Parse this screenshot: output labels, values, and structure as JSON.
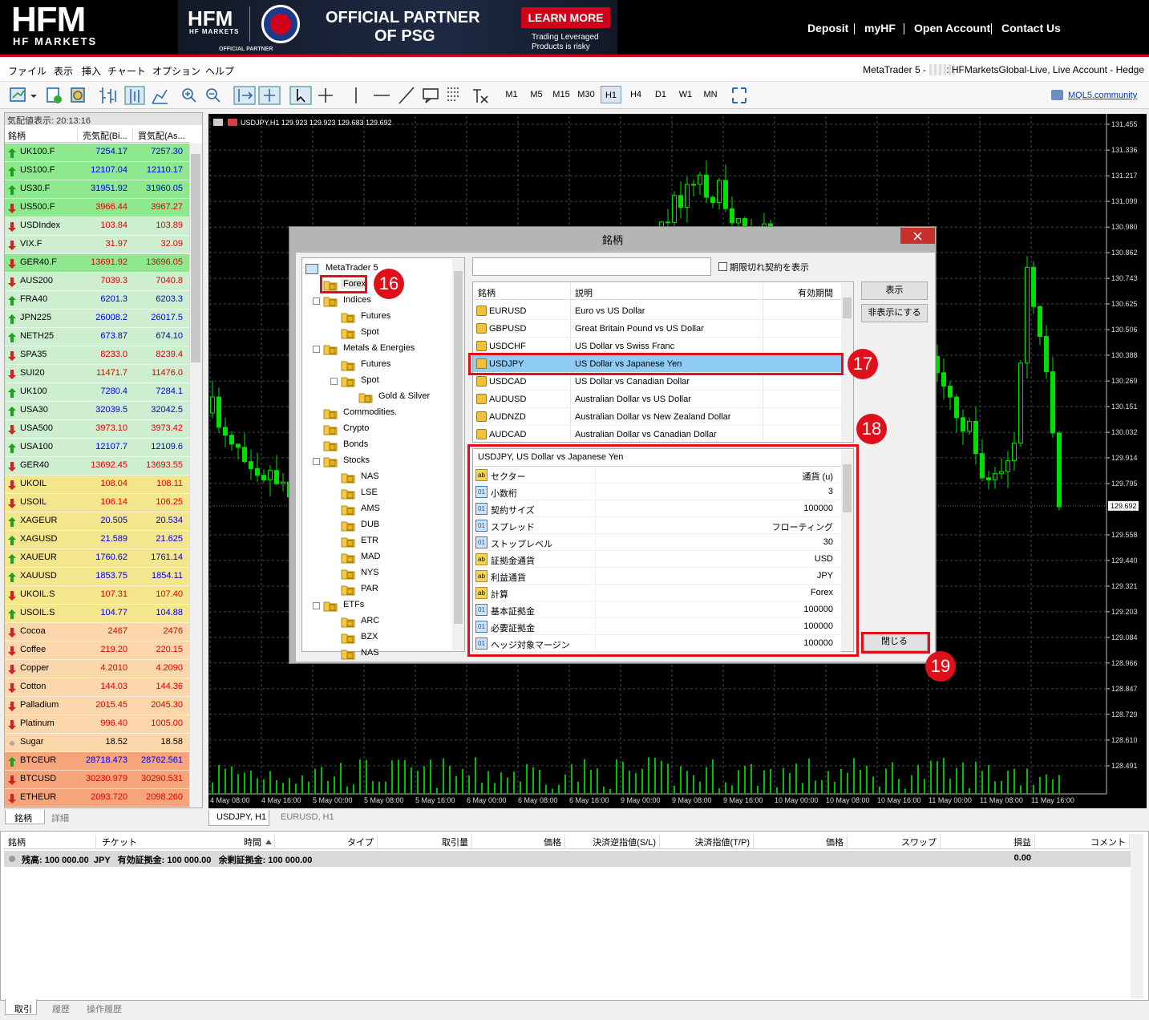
{
  "header": {
    "logo": "HFM",
    "logo_sub": "HF MARKETS",
    "banner": {
      "logo": "HFM",
      "logo_sub": "HF MARKETS",
      "partner_small": "OFFICIAL PARTNER",
      "headline": [
        "OFFICIAL PARTNER",
        "OF PSG"
      ],
      "button": "LEARN MORE",
      "risk": [
        "Trading Leveraged",
        "Products is risky"
      ]
    },
    "nav": [
      "Deposit",
      "myHF",
      "Open Account",
      "Contact Us"
    ]
  },
  "menu": {
    "items": [
      "ファイル",
      "表示",
      "挿入",
      "チャート",
      "オプション",
      "ヘルプ"
    ],
    "account_prefix": "MetaTrader 5 -",
    "account": ": HFMarketsGlobal-Live, Live Account - Hedge"
  },
  "toolbar": {
    "timeframes": [
      "M1",
      "M5",
      "M15",
      "M30",
      "H1",
      "H4",
      "D1",
      "W1",
      "MN"
    ],
    "selected": 4,
    "community": "MQL5.community"
  },
  "market_watch": {
    "title": "気配値表示: 20:13:16",
    "columns": [
      "銘柄",
      "売気配(Bi...",
      "買気配(As..."
    ],
    "rows": [
      {
        "symbol": "UK100.F",
        "bid": "7254.17",
        "ask": "7257.30",
        "dir": "up",
        "bg": "#8ee88e"
      },
      {
        "symbol": "US100.F",
        "bid": "12107.04",
        "ask": "12110.17",
        "dir": "up",
        "bg": "#8ee88e"
      },
      {
        "symbol": "US30.F",
        "bid": "31951.92",
        "ask": "31960.05",
        "dir": "up",
        "bg": "#8ee88e"
      },
      {
        "symbol": "US500.F",
        "bid": "3966.44",
        "ask": "3967.27",
        "dir": "down",
        "bg": "#8ee88e"
      },
      {
        "symbol": "USDIndex",
        "bid": "103.84",
        "ask": "103.89",
        "dir": "down",
        "bg": "#cdeecf"
      },
      {
        "symbol": "VIX.F",
        "bid": "31.97",
        "ask": "32.09",
        "dir": "down",
        "bg": "#cdeecf"
      },
      {
        "symbol": "GER40.F",
        "bid": "13691.92",
        "ask": "13696.05",
        "dir": "down",
        "bg": "#8ee88e"
      },
      {
        "symbol": "AUS200",
        "bid": "7039.3",
        "ask": "7040.8",
        "dir": "down",
        "bg": "#cdeecf"
      },
      {
        "symbol": "FRA40",
        "bid": "6201.3",
        "ask": "6203.3",
        "dir": "up",
        "bg": "#cdeecf"
      },
      {
        "symbol": "JPN225",
        "bid": "26008.2",
        "ask": "26017.5",
        "dir": "up",
        "bg": "#cdeecf"
      },
      {
        "symbol": "NETH25",
        "bid": "673.87",
        "ask": "674.10",
        "dir": "up",
        "bg": "#cdeecf"
      },
      {
        "symbol": "SPA35",
        "bid": "8233.0",
        "ask": "8239.4",
        "dir": "down",
        "bg": "#cdeecf"
      },
      {
        "symbol": "SUI20",
        "bid": "11471.7",
        "ask": "11476.0",
        "dir": "down",
        "bg": "#cdeecf"
      },
      {
        "symbol": "UK100",
        "bid": "7280.4",
        "ask": "7284.1",
        "dir": "up",
        "bg": "#cdeecf"
      },
      {
        "symbol": "USA30",
        "bid": "32039.5",
        "ask": "32042.5",
        "dir": "up",
        "bg": "#cdeecf"
      },
      {
        "symbol": "USA500",
        "bid": "3973.10",
        "ask": "3973.42",
        "dir": "down",
        "bg": "#cdeecf"
      },
      {
        "symbol": "USA100",
        "bid": "12107.7",
        "ask": "12109.6",
        "dir": "up",
        "bg": "#cdeecf"
      },
      {
        "symbol": "GER40",
        "bid": "13692.45",
        "ask": "13693.55",
        "dir": "down",
        "bg": "#cdeecf"
      },
      {
        "symbol": "UKOIL",
        "bid": "108.04",
        "ask": "108.11",
        "dir": "down",
        "bg": "#f3e68c"
      },
      {
        "symbol": "USOIL",
        "bid": "106.14",
        "ask": "106.25",
        "dir": "down",
        "bg": "#f3e68c"
      },
      {
        "symbol": "XAGEUR",
        "bid": "20.505",
        "ask": "20.534",
        "dir": "up",
        "bg": "#f3e68c"
      },
      {
        "symbol": "XAGUSD",
        "bid": "21.589",
        "ask": "21.625",
        "dir": "up",
        "bg": "#f3e68c"
      },
      {
        "symbol": "XAUEUR",
        "bid": "1760.62",
        "ask": "1761.14",
        "dir": "up",
        "bg": "#f3e68c"
      },
      {
        "symbol": "XAUUSD",
        "bid": "1853.75",
        "ask": "1854.11",
        "dir": "up",
        "bg": "#f3e68c"
      },
      {
        "symbol": "UKOIL.S",
        "bid": "107.31",
        "ask": "107.40",
        "dir": "down",
        "bg": "#f3e68c"
      },
      {
        "symbol": "USOIL.S",
        "bid": "104.77",
        "ask": "104.88",
        "dir": "up",
        "bg": "#f3e68c"
      },
      {
        "symbol": "Cocoa",
        "bid": "2467",
        "ask": "2476",
        "dir": "down",
        "bg": "#fbd7ab"
      },
      {
        "symbol": "Coffee",
        "bid": "219.20",
        "ask": "220.15",
        "dir": "down",
        "bg": "#fbd7ab"
      },
      {
        "symbol": "Copper",
        "bid": "4.2010",
        "ask": "4.2090",
        "dir": "down",
        "bg": "#fbd7ab"
      },
      {
        "symbol": "Cotton",
        "bid": "144.03",
        "ask": "144.36",
        "dir": "down",
        "bg": "#fbd7ab"
      },
      {
        "symbol": "Palladium",
        "bid": "2015.45",
        "ask": "2045.30",
        "dir": "down",
        "bg": "#fbd7ab"
      },
      {
        "symbol": "Platinum",
        "bid": "996.40",
        "ask": "1005.00",
        "dir": "down",
        "bg": "#fbd7ab"
      },
      {
        "symbol": "Sugar",
        "bid": "18.52",
        "ask": "18.58",
        "dir": "none",
        "bg": "#fbd7ab"
      },
      {
        "symbol": "BTCEUR",
        "bid": "28718.473",
        "ask": "28762.561",
        "dir": "up",
        "bg": "#f6a47a"
      },
      {
        "symbol": "BTCUSD",
        "bid": "30230.979",
        "ask": "30290.531",
        "dir": "down",
        "bg": "#f6a47a"
      },
      {
        "symbol": "ETHEUR",
        "bid": "2093.720",
        "ask": "2098.260",
        "dir": "down",
        "bg": "#f6a47a"
      }
    ],
    "tabs": [
      "銘柄",
      "詳細"
    ]
  },
  "chart": {
    "label": "USDJPY,H1  129.923 129.923 129.683 129.692",
    "price_labels": [
      "131.455",
      "131.336",
      "131.217",
      "131.099",
      "130.980",
      "130.862",
      "130.743",
      "130.625",
      "130.506",
      "130.388",
      "130.269",
      "130.151",
      "130.032",
      "129.914",
      "129.795",
      "129.558",
      "129.440",
      "129.321",
      "129.203",
      "129.084",
      "128.966",
      "128.847",
      "128.729",
      "128.610",
      "128.491"
    ],
    "current_price": "129.692",
    "time_labels": [
      "4 May 08:00",
      "4 May 16:00",
      "5 May 00:00",
      "5 May 08:00",
      "5 May 16:00",
      "6 May 00:00",
      "6 May 08:00",
      "6 May 16:00",
      "9 May 00:00",
      "9 May 08:00",
      "9 May 16:00",
      "10 May 00:00",
      "10 May 08:00",
      "10 May 16:00",
      "11 May 00:00",
      "11 May 08:00",
      "11 May 16:00"
    ],
    "tabs": [
      "USDJPY, H1",
      "EURUSD, H1"
    ]
  },
  "dialog": {
    "title": "銘柄",
    "tree": [
      {
        "label": "MetaTrader 5",
        "level": 0
      },
      {
        "label": "Forex",
        "level": 1
      },
      {
        "label": "Indices",
        "level": 1,
        "expanded": true
      },
      {
        "label": "Futures",
        "level": 2
      },
      {
        "label": "Spot",
        "level": 2
      },
      {
        "label": "Metals & Energies",
        "level": 1,
        "expanded": true
      },
      {
        "label": "Futures",
        "level": 2
      },
      {
        "label": "Spot",
        "level": 2,
        "expanded": true
      },
      {
        "label": "Gold & Silver",
        "level": 3
      },
      {
        "label": "Commodities.",
        "level": 1
      },
      {
        "label": "Crypto",
        "level": 1
      },
      {
        "label": "Bonds",
        "level": 1
      },
      {
        "label": "Stocks",
        "level": 1,
        "expanded": true
      },
      {
        "label": "NAS",
        "level": 2
      },
      {
        "label": "LSE",
        "level": 2
      },
      {
        "label": "AMS",
        "level": 2
      },
      {
        "label": "DUB",
        "level": 2
      },
      {
        "label": "ETR",
        "level": 2
      },
      {
        "label": "MAD",
        "level": 2
      },
      {
        "label": "NYS",
        "level": 2
      },
      {
        "label": "PAR",
        "level": 2
      },
      {
        "label": "ETFs",
        "level": 1,
        "expanded": true
      },
      {
        "label": "ARC",
        "level": 2
      },
      {
        "label": "BZX",
        "level": 2
      },
      {
        "label": "NAS",
        "level": 2
      }
    ],
    "show_expired": "期限切れ契約を表示",
    "columns": [
      "銘柄",
      "説明",
      "有効期間"
    ],
    "symbols": [
      {
        "symbol": "EURUSD",
        "description": "Euro vs US Dollar"
      },
      {
        "symbol": "GBPUSD",
        "description": "Great Britain Pound vs US Dollar"
      },
      {
        "symbol": "USDCHF",
        "description": "US Dollar vs Swiss Franc"
      },
      {
        "symbol": "USDJPY",
        "description": "US Dollar vs Japanese Yen"
      },
      {
        "symbol": "USDCAD",
        "description": "US Dollar vs Canadian Dollar"
      },
      {
        "symbol": "AUDUSD",
        "description": "Australian Dollar vs US Dollar"
      },
      {
        "symbol": "AUDNZD",
        "description": "Australian Dollar vs New Zealand Dollar"
      },
      {
        "symbol": "AUDCAD",
        "description": "Australian Dollar vs Canadian Dollar"
      }
    ],
    "selected": 3,
    "details_title": "USDJPY, US Dollar vs Japanese Yen",
    "properties": [
      {
        "kind": "ab",
        "name": "セクター",
        "value": "通貨 (u)"
      },
      {
        "kind": "01",
        "name": "小数桁",
        "value": "3"
      },
      {
        "kind": "01",
        "name": "契約サイズ",
        "value": "100000"
      },
      {
        "kind": "01",
        "name": "スプレッド",
        "value": "フローティング"
      },
      {
        "kind": "01",
        "name": "ストップレベル",
        "value": "30"
      },
      {
        "kind": "ab",
        "name": "証拠金通貨",
        "value": "USD"
      },
      {
        "kind": "ab",
        "name": "利益通貨",
        "value": "JPY"
      },
      {
        "kind": "ab",
        "name": "計算",
        "value": "Forex"
      },
      {
        "kind": "01",
        "name": "基本証拠金",
        "value": "100000"
      },
      {
        "kind": "01",
        "name": "必要証拠金",
        "value": "100000"
      },
      {
        "kind": "01",
        "name": "ヘッジ対象マージン",
        "value": "100000"
      }
    ],
    "buttons": {
      "show": "表示",
      "hide": "非表示にする",
      "close": "閉じる"
    },
    "callouts": [
      "16",
      "17",
      "18",
      "19"
    ]
  },
  "terminal": {
    "columns": [
      "銘柄",
      "チケット",
      "時間",
      "タイプ",
      "取引量",
      "価格",
      "決済逆指値(S/L)",
      "決済指値(T/P)",
      "価格",
      "スワップ",
      "損益",
      "コメント"
    ],
    "balance": "残高: 100 000.00  JPY   有効証拠金: 100 000.00   余剰証拠金: 100 000.00",
    "profit": "0.00",
    "tabs": [
      "取引",
      "履歴",
      "操作履歴"
    ]
  }
}
